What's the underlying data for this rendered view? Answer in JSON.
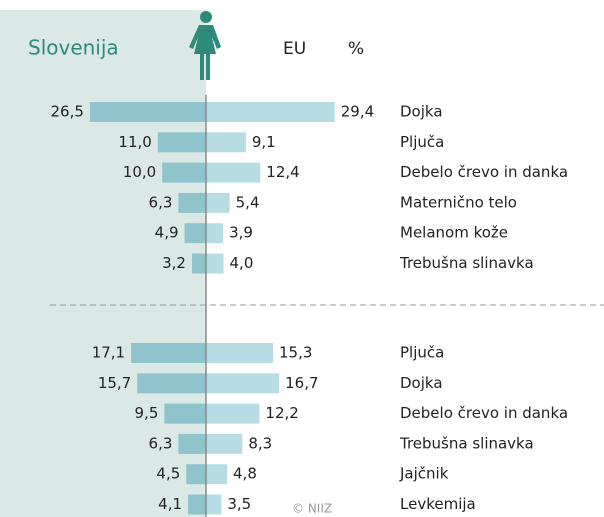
{
  "chart_data": {
    "type": "butterfly",
    "unit": "%",
    "credit": "© NIIZ",
    "categories": [
      [
        "Dojka",
        "Pljuča",
        "Debelo črevo in danka",
        "Maternično telo",
        "Melanom kože",
        "Trebušna slinavka"
      ],
      [
        "Pljuča",
        "Dojka",
        "Debelo črevo in danka",
        "Trebušna slinavka",
        "Jajčnik",
        "Levkemija"
      ]
    ],
    "series": [
      {
        "name": "Slovenija",
        "color": "#8fc4cd",
        "values": [
          [
            26.5,
            11.0,
            10.0,
            6.3,
            4.9,
            3.2
          ],
          [
            17.1,
            15.7,
            9.5,
            6.3,
            4.5,
            4.1
          ]
        ],
        "value_labels": [
          [
            "26,5",
            "11,0",
            "10,0",
            "6,3",
            "4,9",
            "3,2"
          ],
          [
            "17,1",
            "15,7",
            "9,5",
            "6,3",
            "4,5",
            "4,1"
          ]
        ]
      },
      {
        "name": "EU",
        "color": "#b7dce4",
        "values": [
          [
            29.4,
            9.1,
            12.4,
            5.4,
            3.9,
            4.0
          ],
          [
            15.3,
            16.7,
            12.2,
            8.3,
            4.8,
            3.5
          ]
        ],
        "value_labels": [
          [
            "29,4",
            "9,1",
            "12,4",
            "5,4",
            "3,9",
            "4,0"
          ],
          [
            "15,3",
            "16,7",
            "12,2",
            "8,3",
            "4,8",
            "3,5"
          ]
        ]
      }
    ]
  }
}
